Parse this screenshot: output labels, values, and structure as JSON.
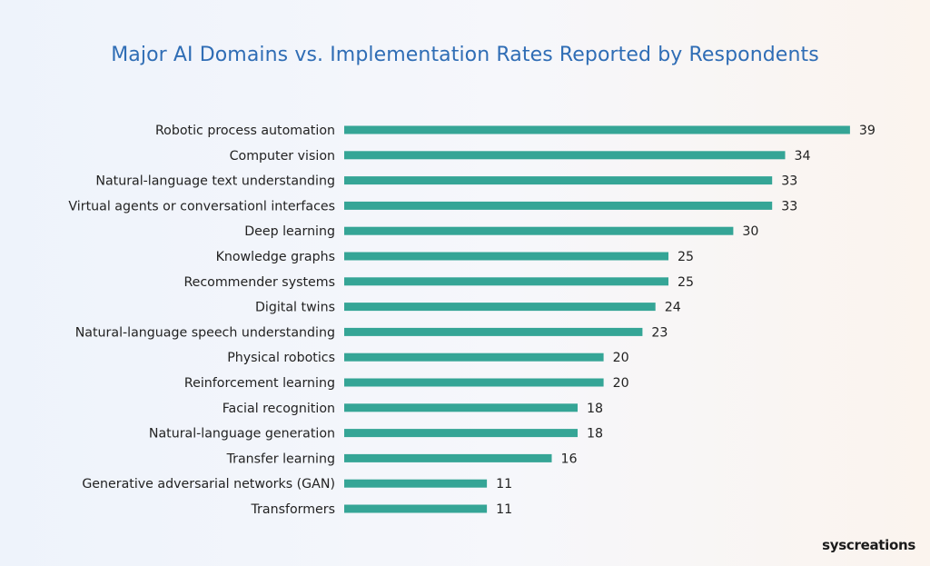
{
  "brand": {
    "logo_text": "syscreations"
  },
  "colors": {
    "bar": "#35a596",
    "title": "#2f6db5"
  },
  "chart_data": {
    "type": "bar",
    "orientation": "horizontal",
    "title": "Major AI Domains vs. Implementation Rates Reported by Respondents",
    "xlabel": "",
    "ylabel": "",
    "xlim": [
      0,
      40
    ],
    "grid": false,
    "legend": "none",
    "categories": [
      "Robotic process automation",
      "Computer vision",
      "Natural-language text understanding",
      "Virtual agents or conversationl interfaces",
      "Deep learning",
      "Knowledge graphs",
      "Recommender systems",
      "Digital twins",
      "Natural-language speech understanding",
      "Physical robotics",
      "Reinforcement learning",
      "Facial recognition",
      "Natural-language generation",
      "Transfer learning",
      "Generative adversarial networks (GAN)",
      "Transformers"
    ],
    "values": [
      39,
      34,
      33,
      33,
      30,
      25,
      25,
      24,
      23,
      20,
      20,
      18,
      18,
      16,
      11,
      11
    ]
  }
}
